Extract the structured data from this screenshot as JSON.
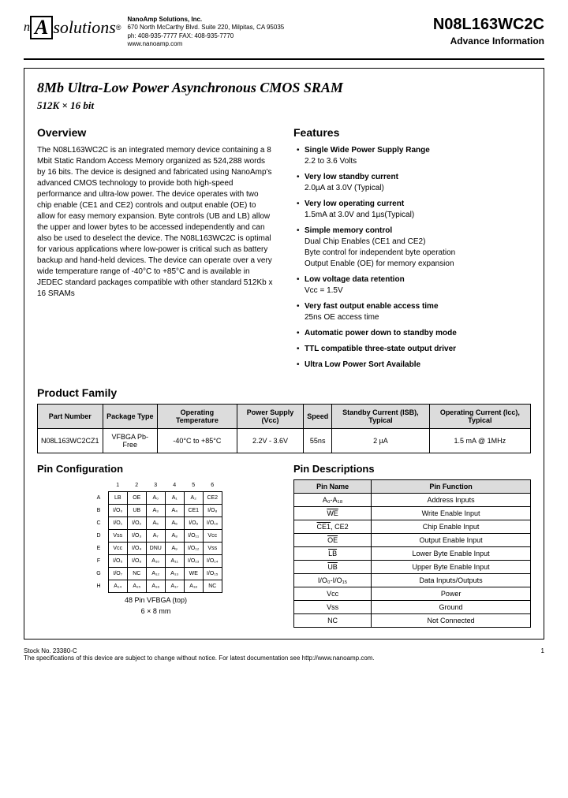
{
  "header": {
    "company_name": "NanoAmp Solutions, Inc.",
    "address": "670 North McCarthy Blvd. Suite 220, Milpitas, CA 95035",
    "contact": "ph: 408-935-7777  FAX: 408-935-7770",
    "website": "www.nanoamp.com",
    "part_number": "N08L163WC2C",
    "doc_status": "Advance Information",
    "logo_text_n": "n",
    "logo_text_a": "A",
    "logo_text_sol": "solutions",
    "logo_reg": "®"
  },
  "title": {
    "main": "8Mb Ultra-Low Power Asynchronous CMOS SRAM",
    "sub": "512K × 16 bit"
  },
  "overview": {
    "heading": "Overview",
    "text": "The N08L163WC2C is an integrated memory device containing a 8 Mbit Static Random Access Memory organized as 524,288 words by 16 bits. The device is designed and fabricated using NanoAmp's advanced CMOS technology to provide both high-speed performance and ultra-low power. The device operates with two chip enable (CE1 and CE2) controls and output enable (OE) to allow for easy memory expansion. Byte controls (UB and LB) allow the upper and lower bytes to be accessed independently and can also be used to deselect the device. The N08L163WC2C is optimal for various applications where low-power is critical such as battery backup and hand-held devices. The device can operate over a very wide temperature range of -40°C to +85°C and is available in JEDEC standard packages compatible with other standard 512Kb x 16 SRAMs"
  },
  "features": {
    "heading": "Features",
    "items": [
      {
        "bold": "Single Wide Power Supply Range",
        "sub": "2.2 to 3.6 Volts"
      },
      {
        "bold": "Very low standby current",
        "sub": "2.0µA at 3.0V (Typical)"
      },
      {
        "bold": "Very low operating current",
        "sub": "1.5mA at 3.0V and 1µs(Typical)"
      },
      {
        "bold": "Simple memory control",
        "sub": "Dual Chip Enables (CE1 and CE2)\nByte control for independent byte operation\nOutput Enable (OE) for memory expansion"
      },
      {
        "bold": "Low voltage data retention",
        "sub": "Vcc = 1.5V"
      },
      {
        "bold": "Very fast output enable access time",
        "sub": "25ns OE access time"
      },
      {
        "bold": "Automatic power down to standby mode",
        "sub": ""
      },
      {
        "bold": "TTL compatible three-state output driver",
        "sub": ""
      },
      {
        "bold": "Ultra Low Power Sort Available",
        "sub": ""
      }
    ]
  },
  "product_family": {
    "heading": "Product Family",
    "columns": [
      "Part Number",
      "Package Type",
      "Operating Temperature",
      "Power Supply (Vcc)",
      "Speed",
      "Standby Current (ISB), Typical",
      "Operating Current (Icc), Typical"
    ],
    "rows": [
      [
        "N08L163WC2CZ1",
        "VFBGA Pb-Free",
        "-40°C to +85°C",
        "2.2V - 3.6V",
        "55ns",
        "2 µA",
        "1.5 mA @ 1MHz"
      ]
    ],
    "header_bg": "#dcdcdc"
  },
  "pin_configuration": {
    "heading": "Pin Configuration",
    "col_labels": [
      "1",
      "2",
      "3",
      "4",
      "5",
      "6"
    ],
    "row_labels": [
      "A",
      "B",
      "C",
      "D",
      "E",
      "F",
      "G",
      "H"
    ],
    "grid": [
      [
        "LB",
        "OE",
        "A₀",
        "A₁",
        "A₂",
        "CE2"
      ],
      [
        "I/O₀",
        "UB",
        "A₃",
        "A₄",
        "CE1",
        "I/O₈"
      ],
      [
        "I/O₁",
        "I/O₂",
        "A₅",
        "A₆",
        "I/O₉",
        "I/O₁₀"
      ],
      [
        "Vss",
        "I/O₃",
        "A₇",
        "A₈",
        "I/O₁₁",
        "Vcc"
      ],
      [
        "Vcc",
        "I/O₄",
        "DNU",
        "A₉",
        "I/O₁₂",
        "Vss"
      ],
      [
        "I/O₅",
        "I/O₆",
        "A₁₀",
        "A₁₁",
        "I/O₁₃",
        "I/O₁₄"
      ],
      [
        "I/O₇",
        "NC",
        "A₁₂",
        "A₁₃",
        "WE",
        "I/O₁₅"
      ],
      [
        "A₁₄",
        "A₁₅",
        "A₁₆",
        "A₁₇",
        "A₁₈",
        "NC"
      ]
    ],
    "caption_line1": "48 Pin VFBGA (top)",
    "caption_line2": "6 × 8 mm"
  },
  "pin_descriptions": {
    "heading": "Pin Descriptions",
    "columns": [
      "Pin Name",
      "Pin Function"
    ],
    "rows": [
      {
        "name": "A₀-A₁₈",
        "overline": false,
        "fn": "Address Inputs"
      },
      {
        "name": "WE",
        "overline": true,
        "fn": "Write Enable Input"
      },
      {
        "name": "CE1, CE2",
        "overline_part": "CE1",
        "fn": "Chip Enable Input"
      },
      {
        "name": "OE",
        "overline": true,
        "fn": "Output Enable Input"
      },
      {
        "name": "LB",
        "overline": true,
        "fn": "Lower Byte Enable Input"
      },
      {
        "name": "UB",
        "overline": true,
        "fn": "Upper Byte Enable Input"
      },
      {
        "name": "I/O₀-I/O₁₅",
        "overline": false,
        "fn": "Data Inputs/Outputs"
      },
      {
        "name": "Vcc",
        "overline": false,
        "fn": "Power"
      },
      {
        "name": "Vss",
        "overline": false,
        "fn": "Ground"
      },
      {
        "name": "NC",
        "overline": false,
        "fn": "Not Connected"
      }
    ],
    "header_bg": "#dcdcdc"
  },
  "footer": {
    "stock": "Stock No. 23380-C",
    "disclaimer": "The specifications of this device are subject to change without notice. For latest documentation see http://www.nanoamp.com.",
    "page": "1"
  },
  "colors": {
    "text": "#000000",
    "bg": "#ffffff",
    "table_header_bg": "#dcdcdc",
    "border": "#000000"
  },
  "typography": {
    "body_font": "Arial, Helvetica, sans-serif",
    "title_font": "Georgia, Times New Roman, serif",
    "body_size_pt": 10,
    "title_size_pt": 18,
    "section_h_size_pt": 14
  }
}
